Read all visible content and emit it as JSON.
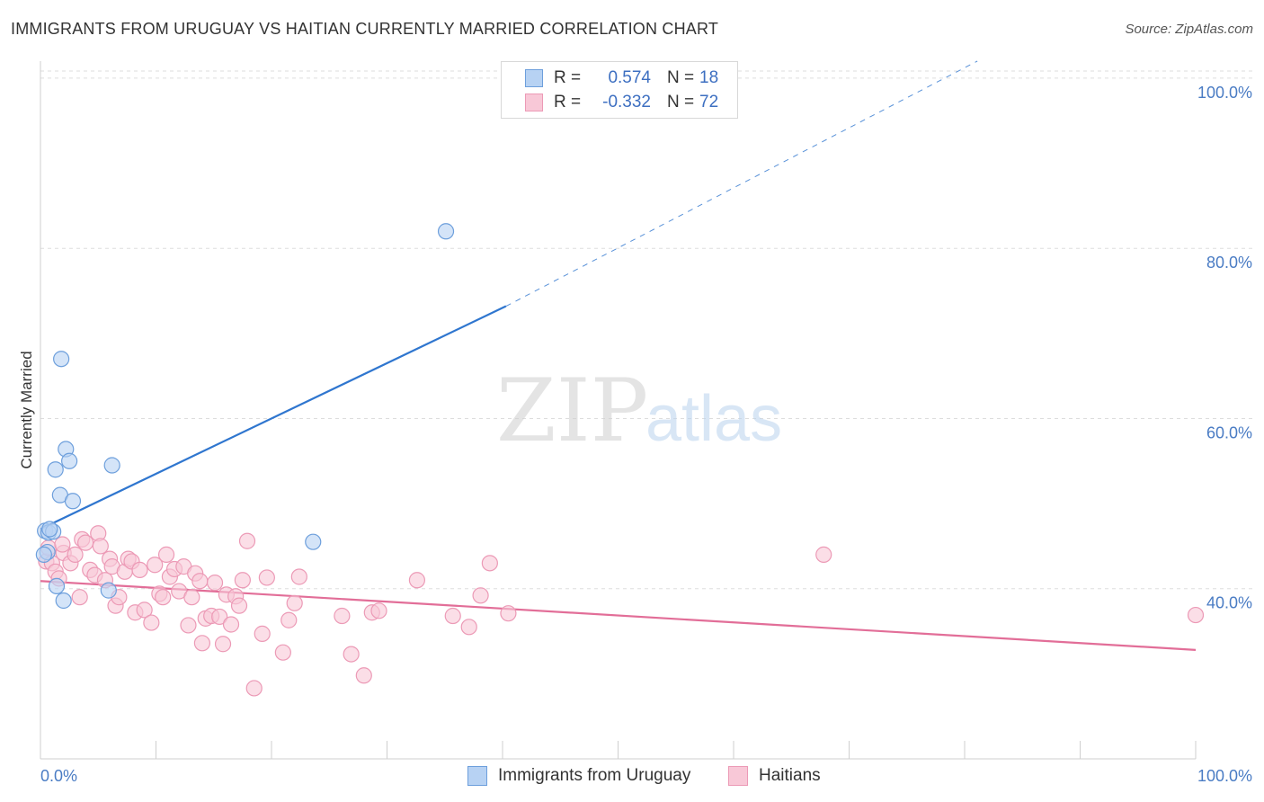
{
  "header": {
    "title": "IMMIGRANTS FROM URUGUAY VS HAITIAN CURRENTLY MARRIED CORRELATION CHART",
    "source": "Source: ZipAtlas.com"
  },
  "watermark": {
    "zip": "ZIP",
    "atlas": "atlas"
  },
  "legend": {
    "rows": [
      {
        "r_label": "R =",
        "r_value": "0.574",
        "n_label": "N =",
        "n_value": "18"
      },
      {
        "r_label": "R =",
        "r_value": "-0.332",
        "n_label": "N =",
        "n_value": "72"
      }
    ]
  },
  "bottom_legend": [
    "Immigrants from Uruguay",
    "Haitians"
  ],
  "colors": {
    "uruguay_fill": "#b7d2f3",
    "uruguay_stroke": "#6d9fdc",
    "uruguay_line": "#2f76cf",
    "haitian_fill": "#f8c8d7",
    "haitian_stroke": "#ec9ab6",
    "haitian_line": "#e26e98",
    "grid": "#dddddd",
    "tick_text": "#4a7cc4"
  },
  "chart_data": {
    "type": "scatter",
    "title": "IMMIGRANTS FROM URUGUAY VS HAITIAN CURRENTLY MARRIED CORRELATION CHART",
    "xlabel": "",
    "ylabel": "Currently Married",
    "xlim": [
      0,
      100
    ],
    "ylim": [
      20,
      102
    ],
    "x_ticks": [
      "0.0%",
      "100.0%"
    ],
    "y_ticks": [
      {
        "value": 100,
        "label": "100.0%"
      },
      {
        "value": 80,
        "label": "80.0%"
      },
      {
        "value": 60,
        "label": "60.0%"
      },
      {
        "value": 40,
        "label": "40.0%"
      }
    ],
    "series": [
      {
        "name": "Immigrants from Uruguay",
        "r": 0.574,
        "n": 18,
        "points": [
          [
            0.4,
            46.8
          ],
          [
            0.6,
            44.3
          ],
          [
            0.3,
            44.0
          ],
          [
            0.7,
            46.6
          ],
          [
            1.1,
            46.7
          ],
          [
            1.8,
            67.0
          ],
          [
            2.2,
            56.4
          ],
          [
            1.3,
            54.0
          ],
          [
            2.5,
            55.0
          ],
          [
            1.7,
            51.0
          ],
          [
            2.8,
            50.3
          ],
          [
            6.2,
            54.5
          ],
          [
            1.4,
            40.3
          ],
          [
            2.0,
            38.6
          ],
          [
            5.9,
            39.8
          ],
          [
            23.6,
            45.5
          ],
          [
            35.1,
            82.0
          ],
          [
            0.8,
            47.0
          ]
        ],
        "trend": {
          "x0": 0,
          "y0": 47.0,
          "x1": 40.3,
          "y1": 73.2,
          "dashed_to_x": 81.1,
          "dashed_to_y": 102.0
        }
      },
      {
        "name": "Haitians",
        "r": -0.332,
        "n": 72,
        "points": [
          [
            0.5,
            43.2
          ],
          [
            0.7,
            44.8
          ],
          [
            1.0,
            43.0
          ],
          [
            1.3,
            42.0
          ],
          [
            1.6,
            41.2
          ],
          [
            2.0,
            44.2
          ],
          [
            2.6,
            43.0
          ],
          [
            3.0,
            44.0
          ],
          [
            3.4,
            39.0
          ],
          [
            3.6,
            45.8
          ],
          [
            3.9,
            45.4
          ],
          [
            4.3,
            42.2
          ],
          [
            4.7,
            41.6
          ],
          [
            5.0,
            46.5
          ],
          [
            5.2,
            45.0
          ],
          [
            5.6,
            41.0
          ],
          [
            6.0,
            43.5
          ],
          [
            6.2,
            42.6
          ],
          [
            6.5,
            38.0
          ],
          [
            6.8,
            39.0
          ],
          [
            7.3,
            42.0
          ],
          [
            7.6,
            43.5
          ],
          [
            7.9,
            43.2
          ],
          [
            8.2,
            37.2
          ],
          [
            8.6,
            42.2
          ],
          [
            9.0,
            37.5
          ],
          [
            9.6,
            36.0
          ],
          [
            9.9,
            42.8
          ],
          [
            10.3,
            39.4
          ],
          [
            10.6,
            39.0
          ],
          [
            10.9,
            44.0
          ],
          [
            11.2,
            41.4
          ],
          [
            11.6,
            42.3
          ],
          [
            12.0,
            39.7
          ],
          [
            12.4,
            42.6
          ],
          [
            12.8,
            35.7
          ],
          [
            13.1,
            39.0
          ],
          [
            13.4,
            41.8
          ],
          [
            13.8,
            40.9
          ],
          [
            14.0,
            33.6
          ],
          [
            14.3,
            36.5
          ],
          [
            14.8,
            36.8
          ],
          [
            15.1,
            40.7
          ],
          [
            15.5,
            36.7
          ],
          [
            15.8,
            33.5
          ],
          [
            16.1,
            39.3
          ],
          [
            16.5,
            35.8
          ],
          [
            16.9,
            39.1
          ],
          [
            17.2,
            38.0
          ],
          [
            17.5,
            41.0
          ],
          [
            17.9,
            45.6
          ],
          [
            18.5,
            28.3
          ],
          [
            19.2,
            34.7
          ],
          [
            19.6,
            41.3
          ],
          [
            21.0,
            32.5
          ],
          [
            21.5,
            36.3
          ],
          [
            22.0,
            38.3
          ],
          [
            22.4,
            41.4
          ],
          [
            26.1,
            36.8
          ],
          [
            26.9,
            32.3
          ],
          [
            28.0,
            29.8
          ],
          [
            28.7,
            37.2
          ],
          [
            29.3,
            37.4
          ],
          [
            32.6,
            41.0
          ],
          [
            35.7,
            36.8
          ],
          [
            37.1,
            35.5
          ],
          [
            38.1,
            39.2
          ],
          [
            38.9,
            43.0
          ],
          [
            40.5,
            37.1
          ],
          [
            67.8,
            44.0
          ],
          [
            100.0,
            36.9
          ],
          [
            1.9,
            45.2
          ]
        ],
        "trend": {
          "x0": 0,
          "y0": 40.9,
          "x1": 100,
          "y1": 32.8
        }
      }
    ]
  }
}
